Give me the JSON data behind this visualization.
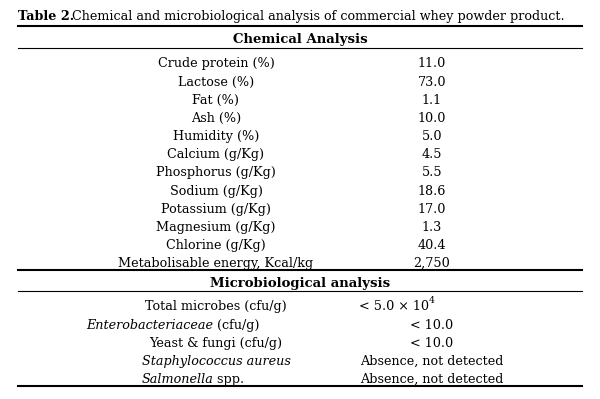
{
  "title_bold": "Table 2.",
  "title_rest": " Chemical and microbiological analysis of commercial whey powder product.",
  "chemical_header": "Chemical Analysis",
  "chemical_rows": [
    [
      "Crude protein (%)",
      "11.0"
    ],
    [
      "Lactose (%)",
      "73.0"
    ],
    [
      "Fat (%)",
      "1.1"
    ],
    [
      "Ash (%)",
      "10.0"
    ],
    [
      "Humidity (%)",
      "5.0"
    ],
    [
      "Calcium (g/Kg)",
      "4.5"
    ],
    [
      "Phosphorus (g/Kg)",
      "5.5"
    ],
    [
      "Sodium (g/Kg)",
      "18.6"
    ],
    [
      "Potassium (g/Kg)",
      "17.0"
    ],
    [
      "Magnesium (g/Kg)",
      "1.3"
    ],
    [
      "Chlorine (g/Kg)",
      "40.4"
    ],
    [
      "Metabolisable energy, Kcal/kg",
      "2,750"
    ]
  ],
  "micro_header": "Microbiological analysis",
  "micro_rows": [
    [
      "Total microbes (cfu/g)",
      "< 5.0 × 10",
      "4",
      false
    ],
    [
      "Enterobacteriaceae (cfu/g)",
      "< 10.0",
      "",
      true
    ],
    [
      "Yeast & fungi (cfu/g)",
      "< 10.0",
      "",
      false
    ],
    [
      "Staphylococcus aureus",
      "Absence, not detected",
      "",
      true
    ],
    [
      "Salmonella spp.",
      "Absence, not detected",
      "",
      true
    ]
  ],
  "bg_color": "#ffffff",
  "text_color": "#000000",
  "font_size": 9.2
}
